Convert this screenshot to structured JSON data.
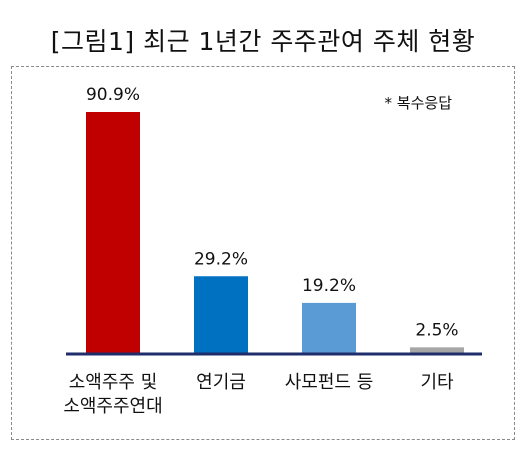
{
  "title": "[그림1] 최근 1년간 주주관여 주체 현황",
  "note": "* 복수응답",
  "colors": {
    "bars": [
      "#c00000",
      "#0070c0",
      "#5b9bd5",
      "#a6a6a6"
    ],
    "axis": "#1f2d6b"
  },
  "chart_data": {
    "type": "bar",
    "categories": [
      [
        "소액주주 및",
        "소액주주연대"
      ],
      [
        "연기금"
      ],
      [
        "사모펀드 등"
      ],
      [
        "기타"
      ]
    ],
    "values": [
      90.9,
      29.2,
      19.2,
      2.5
    ],
    "value_labels": [
      "90.9%",
      "29.2%",
      "19.2%",
      "2.5%"
    ],
    "ylim": [
      0,
      100
    ],
    "grid": false,
    "legend": "none"
  }
}
